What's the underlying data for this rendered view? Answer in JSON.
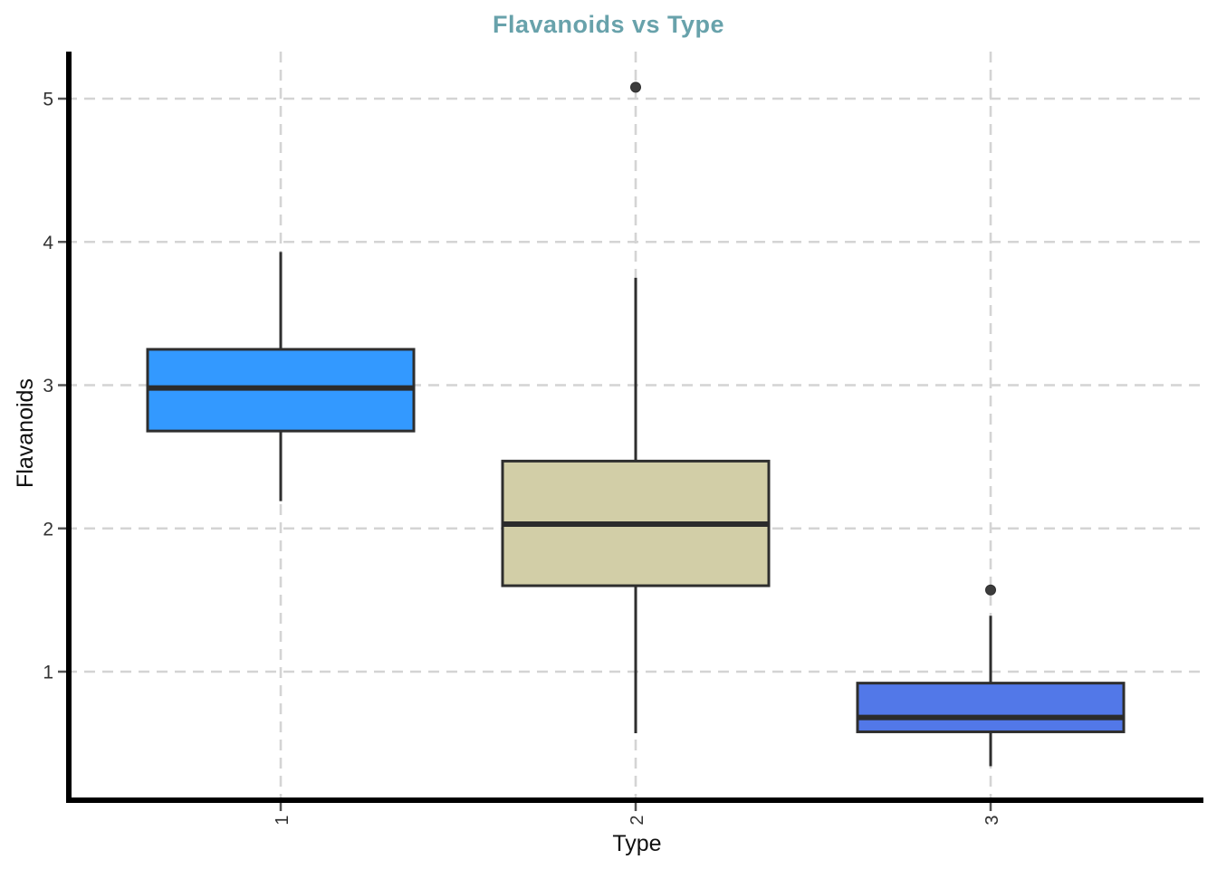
{
  "chart_data": {
    "type": "boxplot",
    "title": "Flavanoids vs Type",
    "xlabel": "Type",
    "ylabel": "Flavanoids",
    "categories": [
      "1",
      "2",
      "3"
    ],
    "y_ticks": [
      1,
      2,
      3,
      4,
      5
    ],
    "ylim": [
      0.1,
      5.33
    ],
    "grid": {
      "style": "dashed",
      "horizontal_at": [
        1,
        2,
        3,
        4,
        5
      ],
      "vertical_at_categories": true
    },
    "legend": "none",
    "x_tick_label_rotation_deg": 90,
    "series": [
      {
        "category": "1",
        "whisker_low": 2.19,
        "q1": 2.68,
        "median": 2.98,
        "q3": 3.25,
        "whisker_high": 3.93,
        "outliers": [],
        "fill": "#3399FF"
      },
      {
        "category": "2",
        "whisker_low": 0.57,
        "q1": 1.6,
        "median": 2.03,
        "q3": 2.47,
        "whisker_high": 3.75,
        "outliers": [
          5.08
        ],
        "fill": "#D2CEA7"
      },
      {
        "category": "3",
        "whisker_low": 0.34,
        "q1": 0.58,
        "median": 0.68,
        "q3": 0.92,
        "whisker_high": 1.39,
        "outliers": [
          1.57
        ],
        "fill": "#5278E8"
      }
    ],
    "colors": {
      "title": "#68A2AB",
      "box_border": "#2E2E2E",
      "median_line": "#2B2B2B",
      "whisker": "#2E2E2E",
      "outlier": "#3C3C3C",
      "gridline": "#D4D4D4",
      "axis": "#000000",
      "tick_mark": "#555555",
      "tick_label": "#333333",
      "axis_label": "#111111"
    }
  }
}
